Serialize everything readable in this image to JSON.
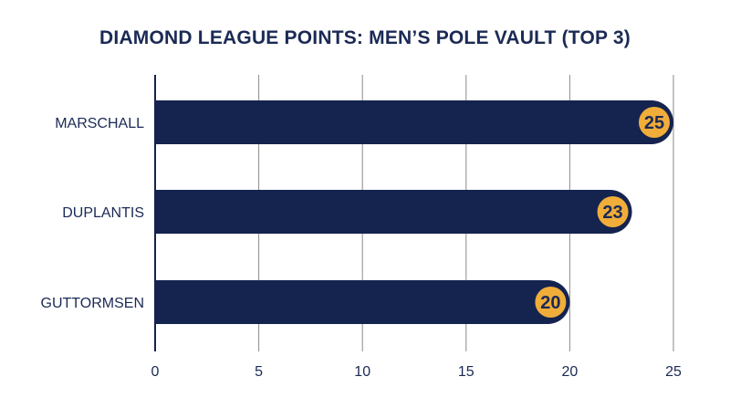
{
  "chart_data": {
    "type": "bar",
    "orientation": "horizontal",
    "title": "DIAMOND LEAGUE POINTS: MEN’S POLE VAULT (TOP 3)",
    "categories": [
      "MARSCHALL",
      "DUPLANTIS",
      "GUTTORMSEN"
    ],
    "values": [
      25,
      23,
      20
    ],
    "xlim": [
      0,
      25
    ],
    "xticks": [
      0,
      5,
      10,
      15,
      20,
      25
    ],
    "grid": true,
    "colors": {
      "bar": "#15234f",
      "badge": "#f0ad3a",
      "text": "#1b2a55",
      "grid": "#8a8a8a",
      "axis": "#15234f"
    }
  }
}
